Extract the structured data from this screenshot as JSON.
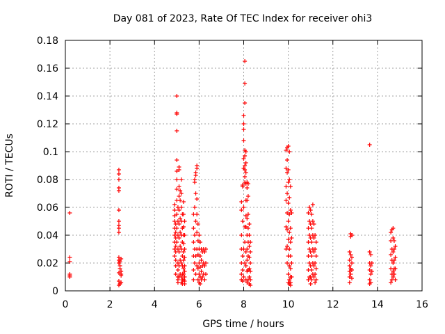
{
  "chart_data": {
    "type": "scatter",
    "title": "Day 081 of 2023, Rate Of TEC Index for receiver ohi3",
    "xlabel": "GPS time / hours",
    "ylabel": "ROTI / TECUs",
    "xlim": [
      0,
      16
    ],
    "ylim": [
      0,
      0.18
    ],
    "xticks": [
      "0",
      "2",
      "4",
      "6",
      "8",
      "10",
      "12",
      "14",
      "16"
    ],
    "yticks": [
      "0",
      "0.02",
      "0.04",
      "0.06",
      "0.08",
      "0.1",
      "0.12",
      "0.14",
      "0.16",
      "0.18"
    ],
    "grid": true,
    "marker": "plus",
    "color": "#ff0000",
    "series": [
      {
        "x": [
          0.2,
          0.2,
          0.2,
          0.2,
          0.2,
          0.2,
          2.4,
          2.4,
          2.4,
          2.4,
          2.4,
          2.4,
          2.4,
          2.4,
          2.4,
          2.4,
          2.4,
          2.4,
          2.4,
          2.45,
          2.45,
          2.5,
          2.5,
          2.5,
          2.5,
          2.45,
          2.4,
          2.4,
          2.4,
          2.45,
          2.5,
          4.9,
          4.9,
          4.9,
          4.9,
          4.9,
          4.9,
          4.9,
          4.9,
          4.9,
          4.95,
          4.95,
          4.95,
          4.95,
          4.95,
          4.95,
          4.95,
          4.95,
          5.0,
          5.0,
          5.0,
          5.0,
          5.0,
          5.0,
          5.0,
          5.0,
          5.0,
          5.0,
          5.0,
          5.0,
          5.05,
          5.05,
          5.05,
          5.05,
          5.05,
          5.05,
          5.05,
          5.05,
          5.05,
          5.1,
          5.1,
          5.1,
          5.1,
          5.1,
          5.1,
          5.1,
          5.1,
          5.1,
          5.1,
          5.15,
          5.15,
          5.15,
          5.15,
          5.15,
          5.15,
          5.15,
          5.2,
          5.2,
          5.2,
          5.2,
          5.2,
          5.2,
          5.2,
          5.2,
          5.2,
          5.25,
          5.25,
          5.25,
          5.25,
          5.25,
          5.25,
          5.25,
          5.25,
          5.3,
          5.3,
          5.3,
          5.3,
          5.3,
          5.3,
          5.3,
          5.3,
          5.3,
          5.3,
          5.35,
          5.35,
          5.35,
          5.35,
          5.35,
          5.35,
          5.35,
          5.35,
          5.35,
          5.75,
          5.75,
          5.75,
          5.75,
          5.75,
          5.75,
          5.8,
          5.8,
          5.8,
          5.8,
          5.8,
          5.8,
          5.85,
          5.85,
          5.85,
          5.85,
          5.85,
          5.85,
          5.9,
          5.9,
          5.9,
          5.9,
          5.9,
          5.9,
          5.9,
          5.95,
          5.95,
          5.95,
          5.95,
          5.95,
          6.0,
          6.0,
          6.0,
          6.0,
          6.0,
          6.05,
          6.05,
          6.05,
          6.05,
          6.05,
          6.1,
          6.1,
          6.1,
          6.1,
          6.15,
          6.15,
          6.15,
          6.2,
          6.2,
          6.2,
          6.25,
          6.25,
          6.25,
          6.3,
          6.3,
          6.3,
          7.9,
          7.9,
          7.9,
          7.9,
          7.9,
          7.9,
          7.9,
          7.95,
          7.95,
          7.95,
          7.95,
          7.95,
          7.95,
          8.0,
          8.0,
          8.0,
          8.0,
          8.0,
          8.0,
          8.0,
          8.0,
          8.0,
          8.05,
          8.05,
          8.05,
          8.05,
          8.05,
          8.05,
          8.05,
          8.05,
          8.05,
          8.05,
          8.05,
          8.05,
          8.1,
          8.1,
          8.1,
          8.1,
          8.1,
          8.1,
          8.1,
          8.1,
          8.1,
          8.1,
          8.15,
          8.15,
          8.15,
          8.15,
          8.15,
          8.15,
          8.15,
          8.15,
          8.15,
          8.2,
          8.2,
          8.2,
          8.2,
          8.2,
          8.2,
          8.2,
          8.2,
          8.25,
          8.25,
          8.25,
          8.25,
          8.25,
          8.25,
          8.25,
          8.3,
          8.3,
          8.3,
          8.3,
          8.3,
          8.3,
          9.9,
          9.9,
          9.9,
          9.9,
          9.9,
          9.9,
          9.95,
          9.95,
          9.95,
          9.95,
          9.95,
          9.95,
          9.95,
          9.95,
          10.0,
          10.0,
          10.0,
          10.0,
          10.0,
          10.0,
          10.0,
          10.0,
          10.0,
          10.05,
          10.05,
          10.05,
          10.05,
          10.05,
          10.05,
          10.05,
          10.05,
          10.05,
          10.1,
          10.1,
          10.1,
          10.1,
          10.1,
          10.1,
          10.1,
          10.1,
          10.1,
          10.15,
          10.15,
          10.15,
          10.15,
          10.9,
          10.9,
          10.9,
          10.9,
          10.9,
          10.9,
          10.95,
          10.95,
          10.95,
          10.95,
          10.95,
          10.95,
          11.0,
          11.0,
          11.0,
          11.0,
          11.0,
          11.0,
          11.0,
          11.05,
          11.05,
          11.05,
          11.05,
          11.05,
          11.05,
          11.1,
          11.1,
          11.1,
          11.1,
          11.1,
          11.1,
          11.15,
          11.15,
          11.15,
          11.15,
          11.15,
          11.2,
          11.2,
          11.2,
          11.2,
          11.2,
          11.25,
          11.25,
          11.25,
          11.25,
          12.75,
          12.75,
          12.75,
          12.75,
          12.75,
          12.75,
          12.8,
          12.8,
          12.8,
          12.8,
          12.8,
          12.85,
          12.85,
          12.85,
          12.85,
          12.85,
          13.65,
          13.65,
          13.65,
          13.65,
          13.65,
          13.65,
          13.7,
          13.7,
          13.7,
          13.7,
          13.75,
          13.75,
          14.6,
          14.6,
          14.6,
          14.6,
          14.6,
          14.65,
          14.65,
          14.65,
          14.65,
          14.65,
          14.7,
          14.7,
          14.7,
          14.7,
          14.7,
          14.7,
          14.75,
          14.75,
          14.75,
          14.75,
          14.75,
          14.8,
          14.8,
          14.8,
          14.8
        ],
        "y": [
          0.056,
          0.024,
          0.021,
          0.012,
          0.01,
          0.011,
          0.087,
          0.084,
          0.08,
          0.074,
          0.072,
          0.058,
          0.05,
          0.047,
          0.045,
          0.042,
          0.024,
          0.022,
          0.02,
          0.018,
          0.016,
          0.014,
          0.012,
          0.011,
          0.006,
          0.005,
          0.004,
          0.007,
          0.013,
          0.021,
          0.023,
          0.062,
          0.058,
          0.054,
          0.05,
          0.045,
          0.04,
          0.035,
          0.03,
          0.025,
          0.048,
          0.042,
          0.038,
          0.032,
          0.028,
          0.022,
          0.018,
          0.012,
          0.14,
          0.128,
          0.127,
          0.115,
          0.094,
          0.086,
          0.08,
          0.073,
          0.065,
          0.055,
          0.045,
          0.035,
          0.06,
          0.05,
          0.04,
          0.03,
          0.02,
          0.015,
          0.01,
          0.008,
          0.006,
          0.089,
          0.087,
          0.075,
          0.068,
          0.058,
          0.048,
          0.038,
          0.028,
          0.018,
          0.01,
          0.072,
          0.065,
          0.052,
          0.042,
          0.032,
          0.022,
          0.012,
          0.08,
          0.07,
          0.06,
          0.05,
          0.04,
          0.03,
          0.02,
          0.01,
          0.006,
          0.055,
          0.045,
          0.035,
          0.025,
          0.018,
          0.012,
          0.008,
          0.005,
          0.064,
          0.055,
          0.046,
          0.04,
          0.034,
          0.028,
          0.022,
          0.016,
          0.012,
          0.008,
          0.05,
          0.04,
          0.03,
          0.024,
          0.018,
          0.014,
          0.01,
          0.007,
          0.005,
          0.055,
          0.045,
          0.035,
          0.025,
          0.015,
          0.008,
          0.08,
          0.078,
          0.06,
          0.04,
          0.03,
          0.02,
          0.085,
          0.083,
          0.07,
          0.05,
          0.025,
          0.012,
          0.09,
          0.088,
          0.066,
          0.055,
          0.042,
          0.03,
          0.018,
          0.048,
          0.036,
          0.026,
          0.016,
          0.008,
          0.04,
          0.03,
          0.02,
          0.012,
          0.006,
          0.035,
          0.025,
          0.017,
          0.01,
          0.005,
          0.03,
          0.022,
          0.014,
          0.008,
          0.028,
          0.018,
          0.01,
          0.03,
          0.02,
          0.012,
          0.028,
          0.018,
          0.008,
          0.03,
          0.02,
          0.012,
          0.064,
          0.058,
          0.04,
          0.03,
          0.02,
          0.012,
          0.008,
          0.076,
          0.075,
          0.05,
          0.025,
          0.015,
          0.007,
          0.126,
          0.12,
          0.116,
          0.108,
          0.095,
          0.088,
          0.06,
          0.03,
          0.01,
          0.165,
          0.149,
          0.135,
          0.101,
          0.097,
          0.09,
          0.087,
          0.082,
          0.078,
          0.046,
          0.035,
          0.02,
          0.1,
          0.092,
          0.085,
          0.077,
          0.065,
          0.054,
          0.046,
          0.028,
          0.018,
          0.008,
          0.078,
          0.074,
          0.065,
          0.052,
          0.04,
          0.03,
          0.022,
          0.014,
          0.006,
          0.077,
          0.068,
          0.055,
          0.045,
          0.035,
          0.025,
          0.015,
          0.008,
          0.048,
          0.04,
          0.032,
          0.024,
          0.016,
          0.01,
          0.005,
          0.035,
          0.028,
          0.02,
          0.014,
          0.008,
          0.004,
          0.101,
          0.088,
          0.075,
          0.065,
          0.046,
          0.03,
          0.103,
          0.094,
          0.085,
          0.07,
          0.056,
          0.044,
          0.032,
          0.02,
          0.104,
          0.087,
          0.078,
          0.063,
          0.05,
          0.037,
          0.025,
          0.012,
          0.006,
          0.1,
          0.08,
          0.067,
          0.055,
          0.042,
          0.03,
          0.018,
          0.008,
          0.005,
          0.075,
          0.058,
          0.045,
          0.035,
          0.025,
          0.016,
          0.01,
          0.006,
          0.004,
          0.056,
          0.038,
          0.02,
          0.01,
          0.056,
          0.045,
          0.035,
          0.025,
          0.015,
          0.008,
          0.06,
          0.05,
          0.04,
          0.03,
          0.02,
          0.01,
          0.058,
          0.048,
          0.038,
          0.028,
          0.018,
          0.01,
          0.005,
          0.055,
          0.045,
          0.035,
          0.025,
          0.015,
          0.008,
          0.062,
          0.05,
          0.04,
          0.03,
          0.02,
          0.012,
          0.048,
          0.038,
          0.028,
          0.018,
          0.01,
          0.04,
          0.03,
          0.02,
          0.012,
          0.006,
          0.035,
          0.025,
          0.016,
          0.008,
          0.028,
          0.022,
          0.018,
          0.014,
          0.01,
          0.006,
          0.041,
          0.039,
          0.026,
          0.016,
          0.012,
          0.04,
          0.024,
          0.02,
          0.015,
          0.009,
          0.105,
          0.028,
          0.02,
          0.015,
          0.008,
          0.005,
          0.026,
          0.018,
          0.012,
          0.006,
          0.02,
          0.014,
          0.042,
          0.036,
          0.026,
          0.016,
          0.006,
          0.044,
          0.03,
          0.022,
          0.012,
          0.008,
          0.045,
          0.038,
          0.028,
          0.02,
          0.014,
          0.01,
          0.036,
          0.03,
          0.022,
          0.016,
          0.012,
          0.032,
          0.024,
          0.016,
          0.008
        ]
      }
    ]
  }
}
